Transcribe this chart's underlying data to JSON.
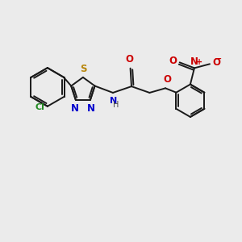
{
  "bg_color": "#ebebeb",
  "bond_color": "#1a1a1a",
  "cl_color": "#228B22",
  "s_color": "#b8860b",
  "n_color": "#0000cd",
  "o_color": "#cc0000",
  "lw": 1.4,
  "figsize": [
    3.0,
    3.0
  ],
  "dpi": 100,
  "xlim": [
    -1.0,
    9.5
  ],
  "ylim": [
    -1.5,
    5.5
  ]
}
